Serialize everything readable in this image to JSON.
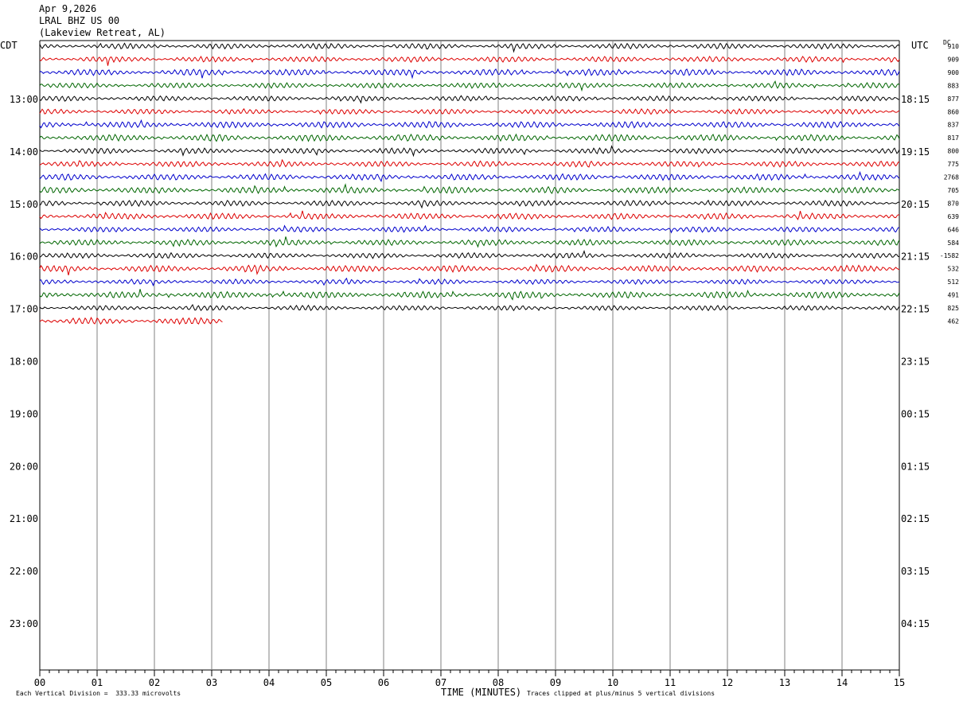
{
  "header": {
    "date": "Apr 9,2026",
    "station": "LRAL BHZ US 00",
    "location": "(Lakeview Retreat, AL)"
  },
  "left_tz": "CDT",
  "right_tz": "UTC",
  "dc_label": "DC",
  "footer": {
    "scale": "Each Vertical Division =  333.33 microvolts",
    "xlabel": "TIME (MINUTES)",
    "clip": "Traces clipped at plus/minus 5 vertical divisions"
  },
  "colors": {
    "black": "#000000",
    "red": "#dd0000",
    "blue": "#0000cc",
    "green": "#006600",
    "grid": "#808080"
  },
  "chart_data": {
    "type": "line",
    "title": "LRAL BHZ US 00",
    "xlabel": "TIME (MINUTES)",
    "x_ticks": [
      "00",
      "01",
      "02",
      "03",
      "04",
      "05",
      "06",
      "07",
      "08",
      "09",
      "10",
      "11",
      "12",
      "13",
      "14",
      "15"
    ],
    "xlim": [
      0,
      15
    ],
    "left_hour_labels": [
      "13:00",
      "14:00",
      "15:00",
      "16:00",
      "17:00",
      "18:00",
      "19:00",
      "20:00",
      "21:00",
      "22:00",
      "23:00"
    ],
    "right_hour_labels": [
      "18:15",
      "19:15",
      "20:15",
      "21:15",
      "22:15",
      "23:15",
      "00:15",
      "01:15",
      "02:15",
      "03:15",
      "04:15"
    ],
    "trace_colors": [
      "black",
      "red",
      "blue",
      "green"
    ],
    "dc_offsets": [
      "910",
      "909",
      "900",
      "883",
      "877",
      "860",
      "837",
      "817",
      "800",
      "775",
      "2768",
      "705",
      "870",
      "639",
      "646",
      "584",
      "-1582",
      "532",
      "512",
      "491",
      "825",
      "462"
    ],
    "trace_count": 22,
    "last_trace_minutes": 3.2
  }
}
